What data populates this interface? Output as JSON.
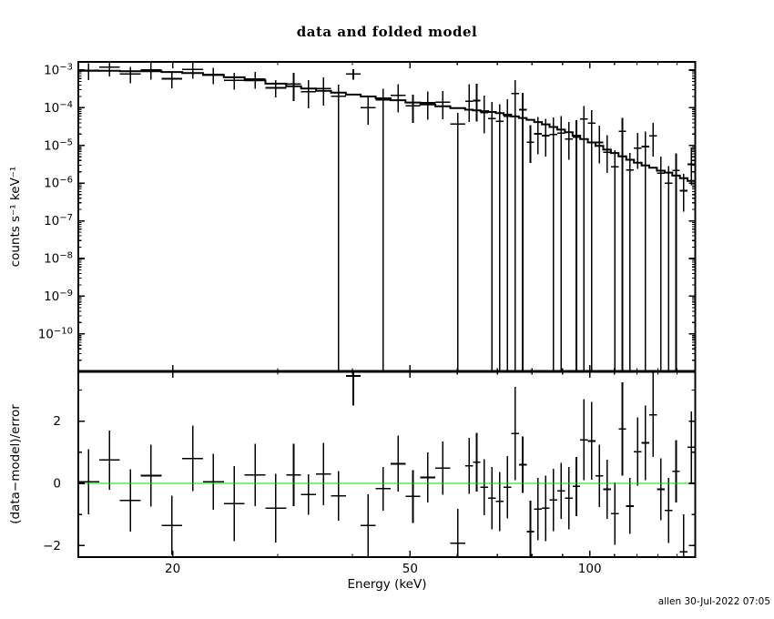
{
  "title": "data and folded model",
  "timestamp": "allen 30-Jul-2022 07:05",
  "axis_labels": {
    "y_top": "counts s⁻¹ keV⁻¹",
    "y_bottom": "(data−model)/error",
    "x": "Energy (keV)"
  },
  "colors": {
    "foreground": "#000000",
    "background": "#ffffff",
    "zero_line": "#00dd00"
  },
  "chart_data": [
    {
      "type": "line",
      "name": "spectrum-panel",
      "description": "data points with error bars and stepped folded model, log-log axes",
      "ylabel": "counts s⁻¹ keV⁻¹",
      "xscale": "log",
      "yscale": "log",
      "xlim": [
        13.9,
        150.2
      ],
      "ylim_log10": [
        -11.0,
        -2.78
      ],
      "x_ticks": [
        20,
        50,
        100
      ],
      "x_tick_labels": [
        "20",
        "50",
        "100"
      ],
      "x_minor_ticks": [
        30,
        40,
        60,
        70,
        80,
        90,
        110,
        120,
        130,
        140,
        150
      ],
      "y_tick_exponents": [
        -3,
        -4,
        -5,
        -6,
        -7,
        -8,
        -9,
        -10
      ],
      "bins_format": [
        "e_lo_keV",
        "e_hi_keV",
        "log10_data",
        "log10_err_hi",
        "log10_err_lo (null = bar extends to plot bottom)",
        "log10_model"
      ],
      "bins": [
        [
          13.9,
          15.06,
          -3.01,
          -2.82,
          -3.26,
          -3.02
        ],
        [
          15.06,
          16.32,
          -2.92,
          -2.74,
          -3.17,
          -3.02
        ],
        [
          16.32,
          17.68,
          -3.1,
          -2.91,
          -3.35,
          -3.03
        ],
        [
          17.68,
          19.16,
          -3.0,
          -2.81,
          -3.25,
          -3.03
        ],
        [
          19.16,
          20.76,
          -3.23,
          -3.04,
          -3.48,
          -3.05
        ],
        [
          20.76,
          22.49,
          -2.98,
          -2.79,
          -3.23,
          -3.08
        ],
        [
          22.49,
          24.37,
          -3.12,
          -2.94,
          -3.37,
          -3.13
        ],
        [
          24.37,
          26.41,
          -3.27,
          -3.07,
          -3.52,
          -3.19
        ],
        [
          26.41,
          28.61,
          -3.24,
          -3.05,
          -3.49,
          -3.27
        ],
        [
          28.61,
          31.0,
          -3.47,
          -3.27,
          -3.72,
          -3.36
        ],
        [
          31.0,
          32.84,
          -3.37,
          -3.07,
          -3.82,
          -3.43
        ],
        [
          32.84,
          34.78,
          -3.57,
          -3.27,
          -4.02,
          -3.49
        ],
        [
          34.78,
          36.84,
          -3.49,
          -3.19,
          -3.94,
          -3.55
        ],
        [
          36.84,
          39.02,
          -3.69,
          -3.39,
          null,
          -3.6
        ],
        [
          39.02,
          41.33,
          -3.1,
          -2.98,
          -3.25,
          -3.65
        ],
        [
          41.33,
          43.78,
          -4.0,
          -3.7,
          -4.45,
          -3.7
        ],
        [
          43.78,
          46.37,
          -3.79,
          -3.49,
          null,
          -3.75
        ],
        [
          46.37,
          49.12,
          -3.67,
          -3.37,
          -4.12,
          -3.8
        ],
        [
          49.12,
          52.03,
          -3.95,
          -3.65,
          -4.4,
          -3.86
        ],
        [
          52.03,
          55.11,
          -3.87,
          -3.57,
          -4.32,
          -3.91
        ],
        [
          55.11,
          58.37,
          -3.85,
          -3.55,
          -4.3,
          -3.96
        ],
        [
          58.37,
          61.83,
          -4.43,
          -4.13,
          null,
          -4.01
        ],
        [
          61.83,
          63.69,
          -3.83,
          -3.38,
          -4.38,
          -4.05
        ],
        [
          63.69,
          65.6,
          -3.81,
          -3.36,
          -4.36,
          -4.07
        ],
        [
          65.6,
          67.57,
          -4.13,
          -3.68,
          -4.68,
          -4.09
        ],
        [
          67.57,
          69.6,
          -4.29,
          -3.84,
          null,
          -4.11
        ],
        [
          69.6,
          71.69,
          -4.36,
          -3.91,
          null,
          -4.14
        ],
        [
          71.69,
          73.84,
          -4.22,
          -3.77,
          null,
          -4.18
        ],
        [
          73.84,
          76.06,
          -3.62,
          -3.27,
          null,
          -4.23
        ],
        [
          76.06,
          78.35,
          -4.05,
          -3.6,
          null,
          -4.27
        ],
        [
          78.35,
          80.7,
          -4.91,
          -4.46,
          -5.46,
          -4.32
        ],
        [
          80.7,
          83.12,
          -4.69,
          -4.24,
          -5.24,
          -4.38
        ],
        [
          83.12,
          85.62,
          -4.74,
          -4.29,
          -5.29,
          -4.44
        ],
        [
          85.62,
          88.19,
          -4.71,
          -4.26,
          null,
          -4.51
        ],
        [
          88.19,
          90.84,
          -4.67,
          -4.22,
          null,
          -4.58
        ],
        [
          90.84,
          93.57,
          -4.83,
          -4.38,
          -5.38,
          -4.65
        ],
        [
          93.57,
          96.38,
          -4.78,
          -4.33,
          null,
          -4.74
        ],
        [
          96.38,
          99.27,
          -4.3,
          -3.95,
          null,
          -4.83
        ],
        [
          99.27,
          102.25,
          -4.41,
          -4.06,
          null,
          -4.92
        ],
        [
          102.25,
          105.32,
          -4.92,
          -4.47,
          -5.47,
          -5.01
        ],
        [
          105.32,
          108.49,
          -5.18,
          -4.73,
          -5.73,
          -5.11
        ],
        [
          108.49,
          111.75,
          -5.57,
          -5.12,
          null,
          -5.2
        ],
        [
          111.75,
          115.1,
          -4.62,
          -4.27,
          null,
          -5.29
        ],
        [
          115.1,
          118.56,
          -5.65,
          -5.2,
          null,
          -5.38
        ],
        [
          118.56,
          122.12,
          -5.07,
          -4.67,
          -5.62,
          -5.46
        ],
        [
          122.12,
          125.79,
          -5.03,
          -4.63,
          null,
          -5.53
        ],
        [
          125.79,
          129.57,
          -4.75,
          -4.4,
          -5.3,
          -5.59
        ],
        [
          129.57,
          133.46,
          -5.74,
          -5.29,
          null,
          -5.67
        ],
        [
          133.46,
          137.47,
          -6.0,
          -5.55,
          null,
          -5.72
        ],
        [
          137.47,
          141.6,
          -5.66,
          -5.21,
          null,
          -5.8
        ],
        [
          141.6,
          145.85,
          -6.2,
          -5.75,
          -6.75,
          -5.87
        ],
        [
          145.85,
          150.23,
          -5.5,
          -5.05,
          -6.05,
          -5.94
        ]
      ]
    },
    {
      "type": "scatter",
      "name": "residuals-panel",
      "description": "(data-model)/error residuals vs energy with green zero line",
      "ylabel": "(data−model)/error",
      "xlabel": "Energy (keV)",
      "xscale": "log",
      "yscale": "linear",
      "xlim": [
        13.9,
        150.2
      ],
      "ylim": [
        -2.37,
        3.6
      ],
      "y_ticks": [
        -2,
        0,
        2
      ],
      "y_tick_labels": [
        "−2",
        "0",
        "2"
      ],
      "y_minor_ticks": [
        -1,
        1,
        3
      ],
      "zero_line_value": 0,
      "bins_format": [
        "e_lo_keV",
        "e_hi_keV",
        "residual_sigma",
        "error_sigma"
      ],
      "bins": [
        [
          13.9,
          15.06,
          0.05,
          1.05
        ],
        [
          15.06,
          16.32,
          0.75,
          0.95
        ],
        [
          16.32,
          17.68,
          -0.55,
          1.0
        ],
        [
          17.68,
          19.16,
          0.25,
          1.0
        ],
        [
          19.16,
          20.76,
          -1.35,
          0.95
        ],
        [
          20.76,
          22.49,
          0.8,
          1.05
        ],
        [
          22.49,
          24.37,
          0.05,
          0.9
        ],
        [
          24.37,
          26.41,
          -0.65,
          1.2
        ],
        [
          26.41,
          28.61,
          0.27,
          1.0
        ],
        [
          28.61,
          31.0,
          -0.8,
          1.1
        ],
        [
          31.0,
          32.84,
          0.27,
          1.0
        ],
        [
          32.84,
          34.78,
          -0.36,
          0.65
        ],
        [
          34.78,
          36.84,
          0.3,
          1.0
        ],
        [
          36.84,
          39.02,
          -0.4,
          0.8
        ],
        [
          39.02,
          41.33,
          3.45,
          0.95
        ],
        [
          41.33,
          43.78,
          -1.35,
          1.0
        ],
        [
          43.78,
          46.37,
          -0.17,
          0.7
        ],
        [
          46.37,
          49.12,
          0.63,
          0.9
        ],
        [
          49.12,
          52.03,
          -0.42,
          0.85
        ],
        [
          52.03,
          55.11,
          0.19,
          0.8
        ],
        [
          55.11,
          58.37,
          0.49,
          0.85
        ],
        [
          58.37,
          61.83,
          -1.92,
          1.1
        ],
        [
          61.83,
          63.69,
          0.56,
          0.9
        ],
        [
          63.69,
          65.6,
          0.68,
          0.95
        ],
        [
          65.6,
          67.57,
          -0.12,
          0.9
        ],
        [
          67.57,
          69.6,
          -0.47,
          1.0
        ],
        [
          69.6,
          71.69,
          -0.58,
          0.95
        ],
        [
          71.69,
          73.84,
          -0.12,
          1.0
        ],
        [
          73.84,
          76.06,
          1.6,
          1.5
        ],
        [
          76.06,
          78.35,
          0.6,
          0.9
        ],
        [
          78.35,
          80.7,
          -1.55,
          1.0
        ],
        [
          80.7,
          83.12,
          -0.83,
          1.0
        ],
        [
          83.12,
          85.62,
          -0.8,
          1.05
        ],
        [
          85.62,
          88.19,
          -0.53,
          1.0
        ],
        [
          88.19,
          90.84,
          -0.24,
          0.9
        ],
        [
          90.84,
          93.57,
          -0.47,
          1.0
        ],
        [
          93.57,
          96.38,
          -0.1,
          0.95
        ],
        [
          96.38,
          99.27,
          1.4,
          1.3
        ],
        [
          99.27,
          102.25,
          1.36,
          1.25
        ],
        [
          102.25,
          105.32,
          0.24,
          1.0
        ],
        [
          105.32,
          108.49,
          -0.19,
          0.95
        ],
        [
          108.49,
          111.75,
          -0.97,
          1.0
        ],
        [
          111.75,
          115.1,
          1.75,
          1.5
        ],
        [
          115.1,
          118.56,
          -0.73,
          0.9
        ],
        [
          118.56,
          122.12,
          1.02,
          1.1
        ],
        [
          122.12,
          125.79,
          1.3,
          1.2
        ],
        [
          125.79,
          129.57,
          2.2,
          1.35
        ],
        [
          129.57,
          133.46,
          -0.19,
          1.0
        ],
        [
          133.46,
          137.47,
          -0.87,
          1.05
        ],
        [
          137.47,
          141.6,
          0.39,
          1.0
        ],
        [
          141.6,
          145.85,
          -2.2,
          1.2
        ],
        [
          145.85,
          150.23,
          1.16,
          1.15
        ]
      ]
    }
  ]
}
